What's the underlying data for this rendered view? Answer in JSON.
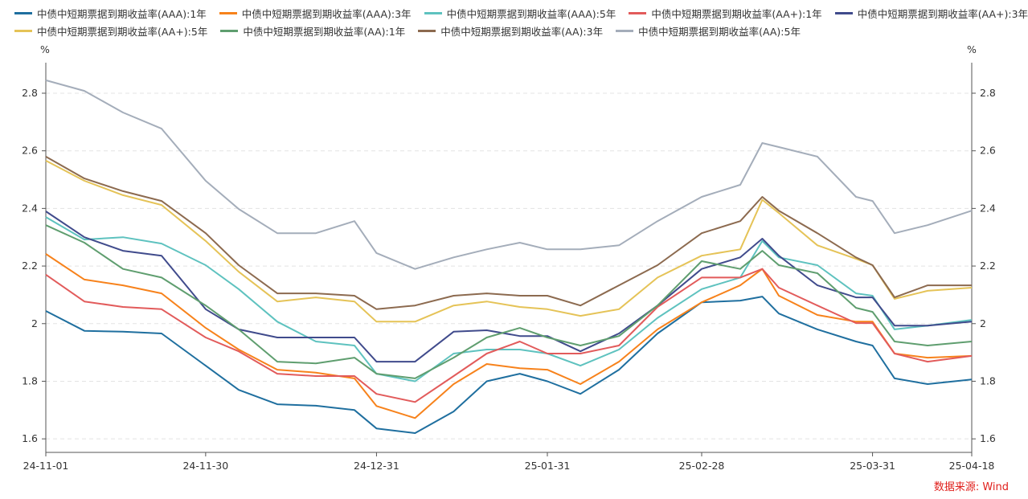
{
  "chart_data": {
    "type": "line",
    "title": "",
    "xlabel": "",
    "ylabel_left": "%",
    "ylabel_right": "%",
    "ylim": [
      1.553,
      2.906
    ],
    "yticks": [
      1.6,
      1.8,
      2.0,
      2.2,
      2.4,
      2.6,
      2.8
    ],
    "ytick_labels": [
      "1.6",
      "1.8",
      "2",
      "2.2",
      "2.4",
      "2.6",
      "2.8"
    ],
    "xlim": [
      "2024-11-01",
      "2025-04-18"
    ],
    "xtick_labels": [
      "24-11-01",
      "24-11-30",
      "24-12-31",
      "25-01-31",
      "25-02-28",
      "25-03-31",
      "25-04-18"
    ],
    "xtick_dates": [
      "2024-11-01",
      "2024-11-30",
      "2024-12-31",
      "2025-01-31",
      "2025-02-28",
      "2025-03-31",
      "2025-04-18"
    ],
    "grid": "horizontal dashed",
    "legend_position": "top",
    "x": [
      "2024-11-01",
      "2024-11-08",
      "2024-11-15",
      "2024-11-22",
      "2024-11-30",
      "2024-12-06",
      "2024-12-13",
      "2024-12-20",
      "2024-12-27",
      "2024-12-31",
      "2025-01-07",
      "2025-01-14",
      "2025-01-20",
      "2025-01-26",
      "2025-01-31",
      "2025-02-06",
      "2025-02-13",
      "2025-02-20",
      "2025-02-28",
      "2025-03-07",
      "2025-03-11",
      "2025-03-14",
      "2025-03-21",
      "2025-03-28",
      "2025-03-31",
      "2025-04-04",
      "2025-04-10",
      "2025-04-18"
    ],
    "series": [
      {
        "name": "中债中短期票据到期收益率(AAA):1年",
        "color": "#1f6f9f",
        "values": [
          2.044,
          1.975,
          1.972,
          1.966,
          1.854,
          1.77,
          1.72,
          1.715,
          1.7,
          1.636,
          1.62,
          1.695,
          1.8,
          1.826,
          1.8,
          1.756,
          1.84,
          1.966,
          2.074,
          2.08,
          2.094,
          2.035,
          1.98,
          1.938,
          1.924,
          1.81,
          1.79,
          1.806
        ]
      },
      {
        "name": "中债中短期票据到期收益率(AAA):3年",
        "color": "#f7821b",
        "values": [
          2.242,
          2.153,
          2.133,
          2.105,
          1.985,
          1.91,
          1.84,
          1.83,
          1.81,
          1.714,
          1.672,
          1.79,
          1.86,
          1.845,
          1.84,
          1.79,
          1.868,
          1.98,
          2.074,
          2.133,
          2.19,
          2.097,
          2.03,
          2.007,
          2.007,
          1.896,
          1.882,
          1.888
        ]
      },
      {
        "name": "中债中短期票据到期收益率(AAA):5年",
        "color": "#5ec2bf",
        "values": [
          2.37,
          2.292,
          2.3,
          2.278,
          2.203,
          2.12,
          2.007,
          1.938,
          1.924,
          1.826,
          1.8,
          1.896,
          1.91,
          1.91,
          1.896,
          1.854,
          1.91,
          2.02,
          2.12,
          2.16,
          2.287,
          2.23,
          2.203,
          2.105,
          2.097,
          1.98,
          1.993,
          2.013
        ]
      },
      {
        "name": "中债中短期票据到期收益率(AA+):1年",
        "color": "#e25b5b",
        "values": [
          2.17,
          2.077,
          2.058,
          2.05,
          1.952,
          1.904,
          1.826,
          1.818,
          1.818,
          1.756,
          1.728,
          1.818,
          1.896,
          1.938,
          1.896,
          1.896,
          1.924,
          2.058,
          2.16,
          2.16,
          2.19,
          2.125,
          2.063,
          2.002,
          2.002,
          1.896,
          1.868,
          1.888
        ]
      },
      {
        "name": "中债中短期票据到期收益率(AA+):3年",
        "color": "#404b8c",
        "values": [
          2.39,
          2.3,
          2.253,
          2.236,
          2.05,
          1.98,
          1.952,
          1.952,
          1.952,
          1.868,
          1.868,
          1.972,
          1.977,
          1.957,
          1.957,
          1.904,
          1.966,
          2.063,
          2.19,
          2.23,
          2.295,
          2.236,
          2.133,
          2.091,
          2.091,
          1.993,
          1.993,
          2.007
        ]
      },
      {
        "name": "中债中短期票据到期收益率(AA+):5年",
        "color": "#e5c357",
        "values": [
          2.566,
          2.496,
          2.446,
          2.412,
          2.287,
          2.18,
          2.077,
          2.091,
          2.077,
          2.007,
          2.007,
          2.063,
          2.077,
          2.058,
          2.05,
          2.027,
          2.05,
          2.16,
          2.236,
          2.258,
          2.43,
          2.384,
          2.272,
          2.225,
          2.203,
          2.086,
          2.114,
          2.125
        ]
      },
      {
        "name": "中债中短期票据到期收益率(AA):1年",
        "color": "#5f9e6f",
        "values": [
          2.342,
          2.281,
          2.19,
          2.16,
          2.063,
          1.98,
          1.868,
          1.862,
          1.882,
          1.826,
          1.81,
          1.882,
          1.952,
          1.985,
          1.952,
          1.924,
          1.957,
          2.063,
          2.217,
          2.19,
          2.253,
          2.203,
          2.175,
          2.055,
          2.041,
          1.938,
          1.924,
          1.938
        ]
      },
      {
        "name": "中债中短期票据到期收益率(AA):3年",
        "color": "#8c6a4f",
        "values": [
          2.58,
          2.504,
          2.46,
          2.426,
          2.314,
          2.203,
          2.105,
          2.105,
          2.097,
          2.05,
          2.063,
          2.097,
          2.105,
          2.097,
          2.097,
          2.063,
          2.133,
          2.203,
          2.314,
          2.356,
          2.44,
          2.392,
          2.314,
          2.23,
          2.203,
          2.091,
          2.133,
          2.133
        ]
      },
      {
        "name": "中债中短期票据到期收益率(AA):5年",
        "color": "#a4adba",
        "values": [
          2.845,
          2.808,
          2.733,
          2.677,
          2.496,
          2.398,
          2.314,
          2.314,
          2.356,
          2.245,
          2.19,
          2.23,
          2.258,
          2.281,
          2.258,
          2.258,
          2.272,
          2.356,
          2.44,
          2.482,
          2.627,
          2.613,
          2.58,
          2.44,
          2.426,
          2.314,
          2.342,
          2.392
        ]
      }
    ]
  },
  "source": "数据来源: Wind"
}
